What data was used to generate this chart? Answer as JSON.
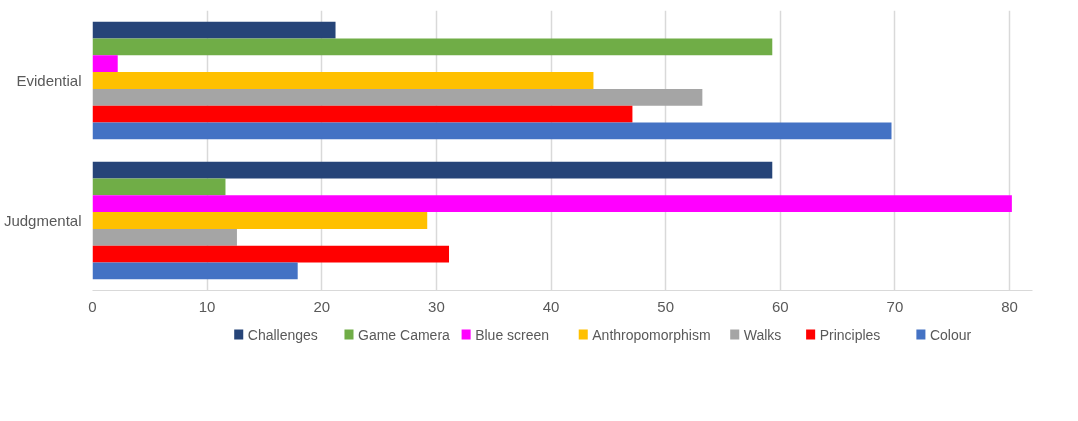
{
  "chart_data": {
    "type": "bar",
    "orientation": "horizontal",
    "categories": [
      "Evidential",
      "Judgmental"
    ],
    "series": [
      {
        "name": "Challenges",
        "color": "#264478",
        "values": [
          21.2,
          59.3
        ]
      },
      {
        "name": "Game Camera",
        "color": "#70ad47",
        "values": [
          59.3,
          11.6
        ]
      },
      {
        "name": "Blue screen",
        "color": "#ff00ff",
        "values": [
          2.2,
          80.2
        ]
      },
      {
        "name": "Anthropomorphism",
        "color": "#ffc000",
        "values": [
          43.7,
          29.2
        ]
      },
      {
        "name": "Walks",
        "color": "#a5a5a5",
        "values": [
          53.2,
          12.6
        ]
      },
      {
        "name": "Principles",
        "color": "#ff0000",
        "values": [
          47.1,
          31.1
        ]
      },
      {
        "name": "Colour",
        "color": "#4472c4",
        "values": [
          69.7,
          17.9
        ]
      }
    ],
    "xlim": [
      0,
      82
    ],
    "xticks": [
      0,
      10,
      20,
      30,
      40,
      50,
      60,
      70,
      80
    ],
    "grid": "x",
    "legend": "bottom"
  }
}
